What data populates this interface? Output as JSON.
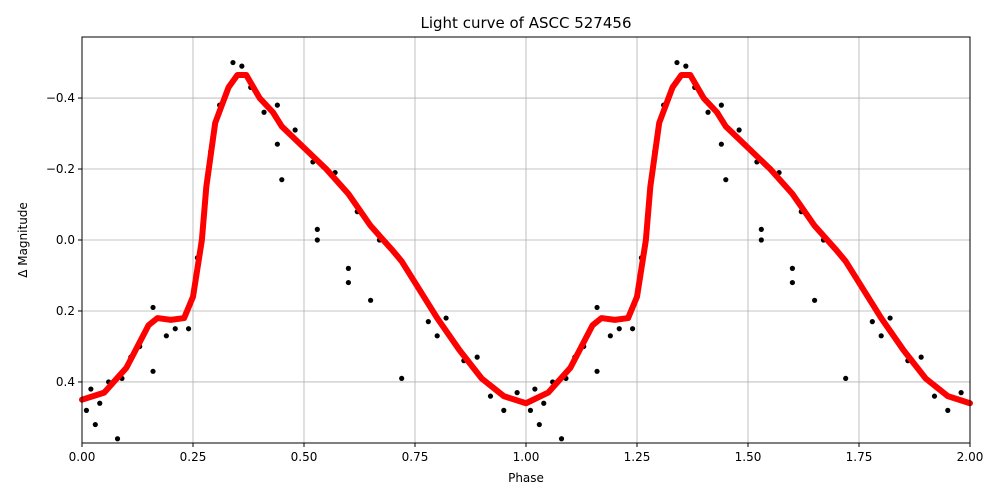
{
  "chart_data": {
    "type": "scatter",
    "title": "Light curve of ASCC 527456",
    "xlabel": "Phase",
    "ylabel": "Δ Magnitude",
    "grid": true,
    "xlim": [
      0,
      2
    ],
    "xticks": [
      {
        "value": 0,
        "label": "0.00"
      },
      {
        "value": 0.25,
        "label": "0.25"
      },
      {
        "value": 0.5,
        "label": "0.50"
      },
      {
        "value": 0.75,
        "label": "0.75"
      },
      {
        "value": 1,
        "label": "1.00"
      },
      {
        "value": 1.25,
        "label": "1.25"
      },
      {
        "value": 1.5,
        "label": "1.50"
      },
      {
        "value": 1.75,
        "label": "1.75"
      },
      {
        "value": 2,
        "label": "2.00"
      }
    ],
    "ylim": [
      0.572,
      -0.572
    ],
    "yticks": [
      {
        "value": -0.4,
        "label": "−0.4"
      },
      {
        "value": -0.2,
        "label": "−0.2"
      },
      {
        "value": 0,
        "label": "0.0"
      },
      0.2,
      0.4
    ],
    "series": [
      {
        "type": "scatter",
        "color": "#000000",
        "x": [
          0.01,
          0.02,
          0.04,
          0.06,
          0.08,
          0.03,
          0.09,
          0.11,
          0.13,
          0.16,
          0.16,
          0.19,
          0.21,
          0.24,
          0.26,
          0.29,
          0.31,
          0.34,
          0.36,
          0.38,
          0.41,
          0.44,
          0.45,
          0.44,
          0.48,
          0.52,
          0.53,
          0.53,
          0.57,
          0.6,
          0.6,
          0.62,
          0.65,
          0.67,
          0.72,
          0.73,
          0.78,
          0.8,
          0.82,
          0.86,
          0.89,
          0.92,
          0.95,
          0.98,
          1.01,
          1.02,
          1.04,
          1.06,
          1.08,
          1.03,
          1.09,
          1.11,
          1.13,
          1.16,
          1.16,
          1.19,
          1.21,
          1.24,
          1.26,
          1.29,
          1.31,
          1.34,
          1.36,
          1.38,
          1.41,
          1.44,
          1.45,
          1.44,
          1.48,
          1.52,
          1.53,
          1.53,
          1.57,
          1.6,
          1.6,
          1.62,
          1.65,
          1.67,
          1.72,
          1.73,
          1.78,
          1.8,
          1.82,
          1.86,
          1.89,
          1.92,
          1.95,
          1.98
        ],
        "values": [
          0.48,
          0.42,
          0.46,
          0.4,
          0.56,
          0.52,
          0.39,
          0.33,
          0.3,
          0.19,
          0.37,
          0.27,
          0.25,
          0.25,
          0.05,
          -0.25,
          -0.38,
          -0.5,
          -0.49,
          -0.43,
          -0.36,
          -0.38,
          -0.17,
          -0.27,
          -0.31,
          -0.22,
          -0.03,
          0.0,
          -0.19,
          0.08,
          0.12,
          -0.08,
          0.17,
          0.0,
          0.39,
          0.08,
          0.23,
          0.27,
          0.22,
          0.34,
          0.33,
          0.44,
          0.48,
          0.43,
          0.48,
          0.42,
          0.46,
          0.4,
          0.56,
          0.52,
          0.39,
          0.33,
          0.3,
          0.19,
          0.37,
          0.27,
          0.25,
          0.25,
          0.05,
          -0.25,
          -0.38,
          -0.5,
          -0.49,
          -0.43,
          -0.36,
          -0.38,
          -0.17,
          -0.27,
          -0.31,
          -0.22,
          -0.03,
          0.0,
          -0.19,
          0.08,
          0.12,
          -0.08,
          0.17,
          0.0,
          0.39,
          0.08,
          0.23,
          0.27,
          0.22,
          0.34,
          0.33,
          0.44,
          0.48,
          0.43
        ]
      },
      {
        "type": "line",
        "color": "#ff0000",
        "x": [
          0,
          0.05,
          0.1,
          0.15,
          0.17,
          0.2,
          0.23,
          0.25,
          0.27,
          0.28,
          0.3,
          0.33,
          0.35,
          0.37,
          0.4,
          0.43,
          0.45,
          0.5,
          0.55,
          0.6,
          0.65,
          0.7,
          0.72,
          0.75,
          0.8,
          0.85,
          0.9,
          0.95,
          1.0,
          1.05,
          1.1,
          1.15,
          1.17,
          1.2,
          1.23,
          1.25,
          1.27,
          1.28,
          1.3,
          1.33,
          1.35,
          1.37,
          1.4,
          1.43,
          1.45,
          1.5,
          1.55,
          1.6,
          1.65,
          1.7,
          1.72,
          1.75,
          1.8,
          1.85,
          1.9,
          1.95,
          2.0
        ],
        "values": [
          0.45,
          0.43,
          0.36,
          0.24,
          0.22,
          0.225,
          0.22,
          0.16,
          0.0,
          -0.15,
          -0.33,
          -0.43,
          -0.465,
          -0.465,
          -0.4,
          -0.36,
          -0.32,
          -0.26,
          -0.2,
          -0.13,
          -0.04,
          0.03,
          0.06,
          0.12,
          0.22,
          0.31,
          0.39,
          0.44,
          0.46,
          0.43,
          0.36,
          0.24,
          0.22,
          0.225,
          0.22,
          0.16,
          0.0,
          -0.15,
          -0.33,
          -0.43,
          -0.465,
          -0.465,
          -0.4,
          -0.36,
          -0.32,
          -0.26,
          -0.2,
          -0.13,
          -0.04,
          0.03,
          0.06,
          0.12,
          0.22,
          0.31,
          0.39,
          0.44,
          0.46
        ]
      }
    ]
  }
}
